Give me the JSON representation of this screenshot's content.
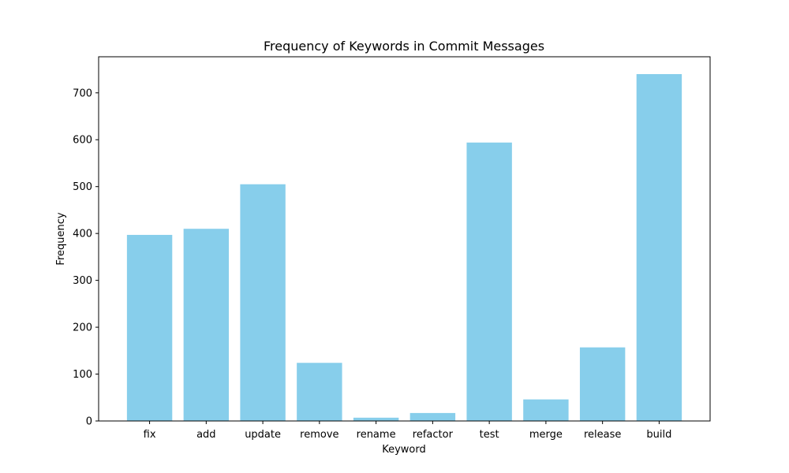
{
  "chart_data": {
    "type": "bar",
    "title": "Frequency of Keywords in Commit Messages",
    "xlabel": "Keyword",
    "ylabel": "Frequency",
    "categories": [
      "fix",
      "add",
      "update",
      "remove",
      "rename",
      "refactor",
      "test",
      "merge",
      "release",
      "build"
    ],
    "values": [
      397,
      410,
      505,
      124,
      7,
      17,
      594,
      46,
      157,
      740
    ],
    "ylim": [
      0,
      777
    ],
    "yticks": [
      0,
      100,
      200,
      300,
      400,
      500,
      600,
      700
    ],
    "bar_color": "#87ceeb",
    "grid": false
  }
}
